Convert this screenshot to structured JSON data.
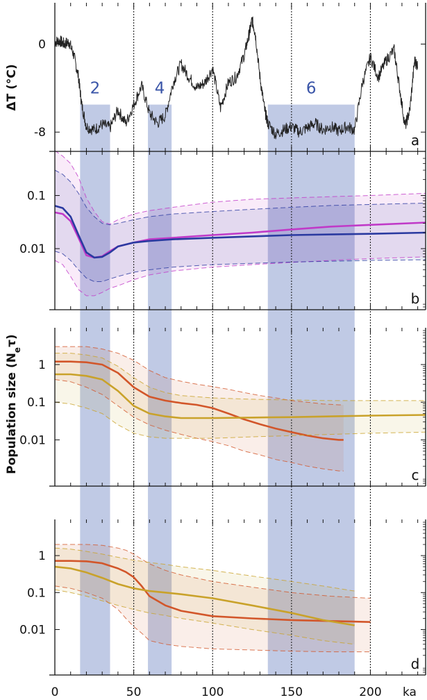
{
  "chart_data": [
    {
      "panel": "a",
      "type": "line",
      "ylabel": "ΔT (°C)",
      "xlim": [
        0,
        235
      ],
      "ylim": [
        -9.5,
        3.5
      ],
      "yticks": [
        {
          "v": 0,
          "label": "0"
        },
        {
          "v": -8,
          "label": "-8"
        }
      ],
      "panel_label": "a",
      "stages": [
        {
          "label": "2",
          "x": [
            16,
            35
          ]
        },
        {
          "label": "4",
          "x": [
            59,
            74
          ]
        },
        {
          "label": "6",
          "x": [
            135,
            190
          ]
        }
      ],
      "stage_band_top": -5.5,
      "series": [
        {
          "color": "#222222",
          "x": [
            0,
            3,
            6,
            9,
            12,
            15,
            17,
            20,
            25,
            30,
            35,
            40,
            45,
            50,
            55,
            60,
            65,
            70,
            75,
            80,
            85,
            90,
            95,
            100,
            105,
            110,
            115,
            120,
            123,
            125,
            127,
            130,
            133,
            135,
            140,
            145,
            150,
            155,
            160,
            165,
            170,
            175,
            180,
            185,
            190,
            195,
            200,
            205,
            210,
            215,
            218,
            222,
            225,
            228,
            230
          ],
          "y": [
            0.2,
            0.3,
            0.0,
            0.2,
            -1.0,
            -3.0,
            -5.5,
            -7.5,
            -7.8,
            -7.3,
            -7.6,
            -6.0,
            -7.2,
            -5.5,
            -3.8,
            -6.3,
            -7.2,
            -6.5,
            -3.5,
            -1.8,
            -3.0,
            -4.0,
            -3.5,
            -2.2,
            -5.8,
            -3.5,
            -3.0,
            -1.0,
            0.8,
            2.2,
            1.0,
            -3.0,
            -6.0,
            -7.2,
            -8.2,
            -7.8,
            -7.5,
            -8.0,
            -7.6,
            -7.2,
            -7.8,
            -7.5,
            -7.9,
            -7.5,
            -7.8,
            -3.5,
            -1.2,
            -3.0,
            -1.5,
            -0.5,
            -3.5,
            -7.5,
            -6.0,
            -1.5,
            -2.0
          ]
        }
      ]
    },
    {
      "panel": "b",
      "type": "line",
      "scale": "log",
      "xlim": [
        0,
        235
      ],
      "ylim": [
        0.0008,
        0.6
      ],
      "yticks": [
        {
          "v": 0.1,
          "label": "0.1"
        },
        {
          "v": 0.01,
          "label": "0.01"
        }
      ],
      "panel_label": "b",
      "series": [
        {
          "color": "#c03ac8",
          "x": [
            0,
            5,
            10,
            15,
            20,
            25,
            30,
            35,
            40,
            50,
            60,
            75,
            100,
            125,
            150,
            175,
            200,
            235
          ],
          "mean": [
            0.048,
            0.045,
            0.033,
            0.016,
            0.0075,
            0.0068,
            0.0072,
            0.009,
            0.011,
            0.013,
            0.015,
            0.016,
            0.018,
            0.02,
            0.023,
            0.026,
            0.028,
            0.031
          ],
          "upper": [
            0.7,
            0.55,
            0.4,
            0.22,
            0.09,
            0.05,
            0.032,
            0.029,
            0.035,
            0.045,
            0.052,
            0.06,
            0.075,
            0.085,
            0.09,
            0.095,
            0.1,
            0.11
          ],
          "lower": [
            0.006,
            0.005,
            0.003,
            0.0017,
            0.0013,
            0.0013,
            0.0015,
            0.0018,
            0.002,
            0.0026,
            0.0032,
            0.0038,
            0.0045,
            0.005,
            0.0055,
            0.006,
            0.0065,
            0.007
          ]
        },
        {
          "color": "#2a3aa0",
          "x": [
            0,
            5,
            10,
            15,
            20,
            25,
            30,
            35,
            40,
            50,
            60,
            75,
            100,
            125,
            150,
            175,
            200,
            235
          ],
          "mean": [
            0.064,
            0.058,
            0.04,
            0.018,
            0.0085,
            0.0068,
            0.007,
            0.0085,
            0.011,
            0.013,
            0.014,
            0.015,
            0.016,
            0.017,
            0.018,
            0.0185,
            0.019,
            0.02
          ],
          "upper": [
            0.3,
            0.25,
            0.18,
            0.11,
            0.06,
            0.04,
            0.03,
            0.028,
            0.03,
            0.035,
            0.04,
            0.045,
            0.05,
            0.055,
            0.06,
            0.065,
            0.068,
            0.072
          ],
          "lower": [
            0.009,
            0.008,
            0.006,
            0.004,
            0.0028,
            0.0024,
            0.0024,
            0.0027,
            0.003,
            0.0036,
            0.004,
            0.0045,
            0.005,
            0.0053,
            0.0056,
            0.0058,
            0.006,
            0.0062
          ]
        }
      ]
    },
    {
      "panel": "c",
      "type": "line",
      "scale": "log",
      "xlim": [
        0,
        235
      ],
      "ylim": [
        0.0007,
        8
      ],
      "yticks": [
        {
          "v": 1,
          "label": "1"
        },
        {
          "v": 0.1,
          "label": "0.1"
        },
        {
          "v": 0.01,
          "label": "0.01"
        }
      ],
      "panel_label": "c",
      "series": [
        {
          "color": "#d2562a",
          "x": [
            0,
            10,
            20,
            30,
            40,
            50,
            60,
            70,
            80,
            90,
            100,
            110,
            120,
            130,
            140,
            150,
            160,
            170,
            180,
            183
          ],
          "mean": [
            1.2,
            1.2,
            1.15,
            1.0,
            0.6,
            0.25,
            0.14,
            0.11,
            0.095,
            0.085,
            0.07,
            0.05,
            0.035,
            0.026,
            0.02,
            0.016,
            0.013,
            0.011,
            0.01,
            0.01
          ],
          "upper": [
            3,
            3,
            3,
            2.6,
            2.0,
            1.3,
            0.7,
            0.45,
            0.36,
            0.3,
            0.26,
            0.22,
            0.18,
            0.15,
            0.13,
            0.11,
            0.1,
            0.09,
            0.085,
            0.085
          ],
          "lower": [
            0.4,
            0.35,
            0.25,
            0.16,
            0.08,
            0.04,
            0.025,
            0.018,
            0.014,
            0.011,
            0.009,
            0.007,
            0.005,
            0.004,
            0.003,
            0.0025,
            0.002,
            0.0017,
            0.0015,
            0.0015
          ]
        },
        {
          "color": "#c9a22a",
          "x": [
            0,
            10,
            20,
            30,
            40,
            50,
            60,
            70,
            80,
            100,
            125,
            150,
            175,
            200,
            235
          ],
          "mean": [
            0.55,
            0.55,
            0.5,
            0.4,
            0.2,
            0.08,
            0.05,
            0.042,
            0.038,
            0.038,
            0.039,
            0.04,
            0.042,
            0.044,
            0.046
          ],
          "upper": [
            2.0,
            2.0,
            1.8,
            1.5,
            0.9,
            0.45,
            0.25,
            0.18,
            0.15,
            0.13,
            0.12,
            0.115,
            0.11,
            0.11,
            0.11
          ],
          "lower": [
            0.1,
            0.09,
            0.07,
            0.05,
            0.025,
            0.015,
            0.012,
            0.011,
            0.011,
            0.011,
            0.012,
            0.013,
            0.014,
            0.015,
            0.016
          ]
        }
      ]
    },
    {
      "panel": "d",
      "type": "line",
      "scale": "log",
      "xlim": [
        0,
        235
      ],
      "ylim": [
        0.0007,
        8
      ],
      "yticks": [
        {
          "v": 1,
          "label": "1"
        },
        {
          "v": 0.1,
          "label": "0.1"
        },
        {
          "v": 0.01,
          "label": "0.01"
        }
      ],
      "panel_label": "d",
      "series": [
        {
          "color": "#d2562a",
          "x": [
            0,
            10,
            20,
            30,
            40,
            45,
            50,
            55,
            60,
            70,
            80,
            100,
            125,
            150,
            175,
            200
          ],
          "mean": [
            0.72,
            0.72,
            0.7,
            0.62,
            0.45,
            0.36,
            0.26,
            0.15,
            0.08,
            0.045,
            0.032,
            0.023,
            0.02,
            0.018,
            0.017,
            0.016
          ],
          "upper": [
            2.0,
            2.0,
            2.0,
            1.9,
            1.6,
            1.4,
            1.1,
            0.8,
            0.6,
            0.4,
            0.3,
            0.2,
            0.14,
            0.1,
            0.08,
            0.07
          ],
          "lower": [
            0.15,
            0.13,
            0.1,
            0.07,
            0.035,
            0.02,
            0.012,
            0.008,
            0.005,
            0.004,
            0.0035,
            0.003,
            0.0028,
            0.0026,
            0.0025,
            0.0025
          ]
        },
        {
          "color": "#c9a22a",
          "x": [
            0,
            10,
            20,
            30,
            40,
            50,
            60,
            70,
            80,
            100,
            125,
            150,
            170,
            190
          ],
          "mean": [
            0.5,
            0.45,
            0.35,
            0.25,
            0.17,
            0.13,
            0.11,
            0.1,
            0.09,
            0.07,
            0.045,
            0.028,
            0.018,
            0.013
          ],
          "upper": [
            1.6,
            1.5,
            1.3,
            1.1,
            0.9,
            0.75,
            0.65,
            0.58,
            0.5,
            0.4,
            0.28,
            0.2,
            0.15,
            0.11
          ],
          "lower": [
            0.12,
            0.1,
            0.08,
            0.06,
            0.045,
            0.035,
            0.028,
            0.024,
            0.02,
            0.015,
            0.01,
            0.007,
            0.005,
            0.004
          ]
        }
      ]
    }
  ],
  "shared": {
    "ylabel": "Population size (N",
    "ylabel_sub": "e",
    "ylabel_tail": "τ)",
    "xticks": [
      {
        "v": 0,
        "label": "0"
      },
      {
        "v": 50,
        "label": "50"
      },
      {
        "v": 100,
        "label": "100"
      },
      {
        "v": 150,
        "label": "150"
      },
      {
        "v": 200,
        "label": "200"
      }
    ],
    "x_unit_label": "ka",
    "dotted_verticals": [
      50,
      100,
      150,
      200
    ],
    "band_color": "#8c9fd0"
  }
}
